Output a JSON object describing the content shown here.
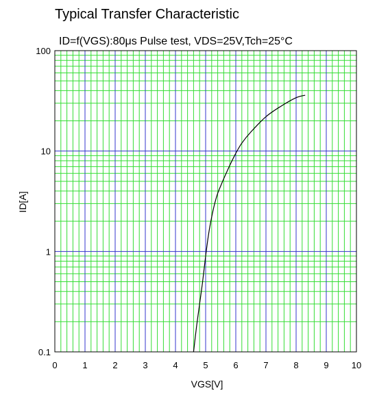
{
  "chart_data": {
    "type": "line",
    "title": "Typical Transfer Characteristic",
    "subtitle": "ID=f(VGS):80μs Pulse test, VDS=25V,Tch=25°C",
    "xlabel": "VGS[V]",
    "ylabel": "ID[A]",
    "xlim": [
      0,
      10
    ],
    "ylim": [
      0.1,
      100
    ],
    "yscale": "log",
    "x_ticks": [
      "0",
      "1",
      "2",
      "3",
      "4",
      "5",
      "6",
      "7",
      "8",
      "9",
      "10"
    ],
    "y_ticks": [
      "0.1",
      "1",
      "10",
      "100"
    ],
    "grid": true,
    "colors": {
      "major_grid": "#3333cc",
      "minor_grid": "#33dd33",
      "line": "#000000"
    },
    "series": [
      {
        "x": [
          4.6,
          4.7,
          4.8,
          4.9,
          5.0,
          5.1,
          5.2,
          5.3,
          5.4,
          5.5,
          5.6,
          5.8,
          6.0,
          6.2,
          6.5,
          7.0,
          7.5,
          8.0,
          8.3
        ],
        "y": [
          0.1,
          0.18,
          0.3,
          0.5,
          0.9,
          1.5,
          2.2,
          3.0,
          3.8,
          4.5,
          5.3,
          7.2,
          9.5,
          12.0,
          15.5,
          22.0,
          28.0,
          34.0,
          36.0
        ]
      }
    ]
  }
}
